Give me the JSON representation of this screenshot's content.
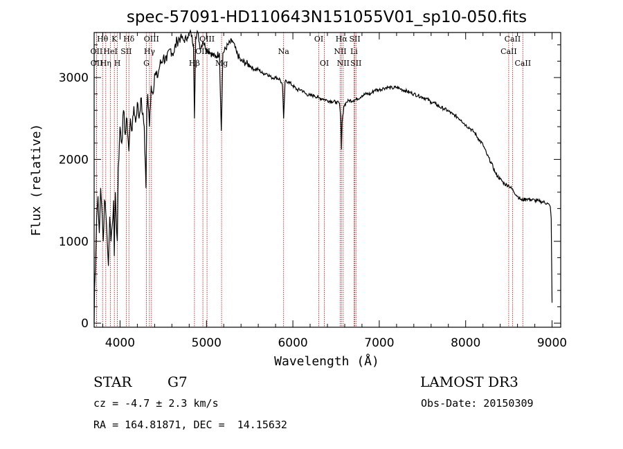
{
  "chart_data": {
    "type": "line",
    "title": "spec-57091-HD110643N151055V01_sp10-050.fits",
    "xlabel": "Wavelength (Å)",
    "ylabel": "Flux (relative)",
    "xlim": [
      3700,
      9100
    ],
    "ylim": [
      -50,
      3550
    ],
    "xticks": [
      4000,
      5000,
      6000,
      7000,
      8000,
      9000
    ],
    "yticks": [
      0,
      1000,
      2000,
      3000
    ],
    "series": [
      {
        "name": "spectrum",
        "anchors": [
          [
            3700,
            0
          ],
          [
            3705,
            420
          ],
          [
            3715,
            680
          ],
          [
            3730,
            1300
          ],
          [
            3745,
            1550
          ],
          [
            3760,
            1100
          ],
          [
            3775,
            1650
          ],
          [
            3790,
            1400
          ],
          [
            3805,
            1000
          ],
          [
            3820,
            1500
          ],
          [
            3835,
            1350
          ],
          [
            3850,
            1050
          ],
          [
            3865,
            700
          ],
          [
            3880,
            1300
          ],
          [
            3895,
            1000
          ],
          [
            3910,
            1200
          ],
          [
            3925,
            1500
          ],
          [
            3933,
            820
          ],
          [
            3945,
            1600
          ],
          [
            3955,
            1300
          ],
          [
            3968,
            1000
          ],
          [
            3980,
            1900
          ],
          [
            4000,
            2400
          ],
          [
            4020,
            2200
          ],
          [
            4040,
            2600
          ],
          [
            4060,
            2300
          ],
          [
            4080,
            2500
          ],
          [
            4102,
            2100
          ],
          [
            4120,
            2500
          ],
          [
            4140,
            2350
          ],
          [
            4160,
            2650
          ],
          [
            4180,
            2450
          ],
          [
            4200,
            2700
          ],
          [
            4220,
            2500
          ],
          [
            4240,
            2750
          ],
          [
            4260,
            2550
          ],
          [
            4280,
            2400
          ],
          [
            4300,
            1650
          ],
          [
            4310,
            2600
          ],
          [
            4320,
            2800
          ],
          [
            4340,
            2400
          ],
          [
            4360,
            2900
          ],
          [
            4380,
            2800
          ],
          [
            4400,
            3050
          ],
          [
            4430,
            3000
          ],
          [
            4460,
            3150
          ],
          [
            4500,
            3250
          ],
          [
            4540,
            3200
          ],
          [
            4580,
            3350
          ],
          [
            4620,
            3300
          ],
          [
            4660,
            3450
          ],
          [
            4700,
            3500
          ],
          [
            4740,
            3450
          ],
          [
            4780,
            3500
          ],
          [
            4820,
            3550
          ],
          [
            4850,
            3400
          ],
          [
            4861,
            2500
          ],
          [
            4875,
            3500
          ],
          [
            4900,
            3550
          ],
          [
            4930,
            3350
          ],
          [
            4960,
            3450
          ],
          [
            5000,
            3350
          ],
          [
            5050,
            3300
          ],
          [
            5100,
            3250
          ],
          [
            5150,
            3300
          ],
          [
            5172,
            2350
          ],
          [
            5190,
            3300
          ],
          [
            5250,
            3400
          ],
          [
            5300,
            3450
          ],
          [
            5350,
            3300
          ],
          [
            5400,
            3200
          ],
          [
            5450,
            3180
          ],
          [
            5500,
            3150
          ],
          [
            5550,
            3100
          ],
          [
            5600,
            3100
          ],
          [
            5650,
            3050
          ],
          [
            5700,
            3050
          ],
          [
            5750,
            3000
          ],
          [
            5800,
            3000
          ],
          [
            5850,
            2980
          ],
          [
            5880,
            2900
          ],
          [
            5893,
            2500
          ],
          [
            5910,
            2950
          ],
          [
            5950,
            2950
          ],
          [
            6000,
            2900
          ],
          [
            6050,
            2850
          ],
          [
            6100,
            2850
          ],
          [
            6150,
            2800
          ],
          [
            6200,
            2780
          ],
          [
            6250,
            2780
          ],
          [
            6300,
            2750
          ],
          [
            6350,
            2740
          ],
          [
            6400,
            2720
          ],
          [
            6450,
            2710
          ],
          [
            6500,
            2700
          ],
          [
            6540,
            2680
          ],
          [
            6555,
            2500
          ],
          [
            6563,
            2120
          ],
          [
            6570,
            2450
          ],
          [
            6590,
            2650
          ],
          [
            6620,
            2700
          ],
          [
            6650,
            2720
          ],
          [
            6700,
            2720
          ],
          [
            6750,
            2740
          ],
          [
            6800,
            2780
          ],
          [
            6850,
            2800
          ],
          [
            6900,
            2800
          ],
          [
            6950,
            2850
          ],
          [
            7000,
            2850
          ],
          [
            7050,
            2870
          ],
          [
            7100,
            2880
          ],
          [
            7150,
            2870
          ],
          [
            7200,
            2880
          ],
          [
            7250,
            2860
          ],
          [
            7300,
            2840
          ],
          [
            7350,
            2820
          ],
          [
            7400,
            2800
          ],
          [
            7450,
            2780
          ],
          [
            7500,
            2760
          ],
          [
            7550,
            2740
          ],
          [
            7600,
            2700
          ],
          [
            7650,
            2680
          ],
          [
            7700,
            2640
          ],
          [
            7750,
            2620
          ],
          [
            7800,
            2590
          ],
          [
            7850,
            2550
          ],
          [
            7900,
            2520
          ],
          [
            7950,
            2480
          ],
          [
            8000,
            2420
          ],
          [
            8050,
            2380
          ],
          [
            8100,
            2330
          ],
          [
            8150,
            2250
          ],
          [
            8200,
            2180
          ],
          [
            8250,
            2050
          ],
          [
            8300,
            1950
          ],
          [
            8350,
            1820
          ],
          [
            8400,
            1760
          ],
          [
            8450,
            1700
          ],
          [
            8500,
            1680
          ],
          [
            8550,
            1620
          ],
          [
            8600,
            1550
          ],
          [
            8650,
            1500
          ],
          [
            8700,
            1520
          ],
          [
            8750,
            1510
          ],
          [
            8800,
            1500
          ],
          [
            8850,
            1490
          ],
          [
            8900,
            1480
          ],
          [
            8950,
            1460
          ],
          [
            8980,
            1420
          ],
          [
            8990,
            1280
          ],
          [
            9000,
            250
          ]
        ]
      }
    ],
    "spectral_lines": [
      {
        "label": "Hθ",
        "wave": 3798,
        "row": 0
      },
      {
        "label": "OII",
        "wave": 3727,
        "row": 1
      },
      {
        "label": "OII",
        "wave": 3729,
        "row": 2
      },
      {
        "label": "Hη",
        "wave": 3835,
        "row": 2
      },
      {
        "label": "HeI",
        "wave": 3889,
        "row": 1
      },
      {
        "label": "K",
        "wave": 3934,
        "row": 0
      },
      {
        "label": "H",
        "wave": 3968,
        "row": 2
      },
      {
        "label": "SII",
        "wave": 4072,
        "row": 1
      },
      {
        "label": "Hδ",
        "wave": 4102,
        "row": 0
      },
      {
        "label": "OIII",
        "wave": 4363,
        "row": 0
      },
      {
        "label": "Hγ",
        "wave": 4340,
        "row": 1
      },
      {
        "label": "G",
        "wave": 4305,
        "row": 2
      },
      {
        "label": "Hβ",
        "wave": 4861,
        "row": 2
      },
      {
        "label": "OIII",
        "wave": 5007,
        "row": 0
      },
      {
        "label": "OIII",
        "wave": 4959,
        "row": 1
      },
      {
        "label": "Mg",
        "wave": 5175,
        "row": 2
      },
      {
        "label": "Na",
        "wave": 5893,
        "row": 1
      },
      {
        "label": "OI",
        "wave": 6300,
        "row": 0
      },
      {
        "label": "OI",
        "wave": 6364,
        "row": 2
      },
      {
        "label": "Hα",
        "wave": 6563,
        "row": 0
      },
      {
        "label": "NII",
        "wave": 6548,
        "row": 1
      },
      {
        "label": "NII",
        "wave": 6583,
        "row": 2
      },
      {
        "label": "SII",
        "wave": 6717,
        "row": 0
      },
      {
        "label": "Li",
        "wave": 6708,
        "row": 1
      },
      {
        "label": "SII",
        "wave": 6731,
        "row": 2
      },
      {
        "label": "CaII",
        "wave": 8542,
        "row": 0
      },
      {
        "label": "CaII",
        "wave": 8498,
        "row": 1
      },
      {
        "label": "CaII",
        "wave": 8662,
        "row": 2
      }
    ]
  },
  "info": {
    "object_class": "STAR",
    "subclass": "G7",
    "redshift_line": "cz = -4.7 ± 2.3 km/s",
    "coords_line": "RA = 164.81871, DEC =  14.15632",
    "survey": "LAMOST DR3",
    "obs_date_line": "Obs-Date: 20150309"
  },
  "colors": {
    "line": "#000000",
    "marker_line": "#b22222",
    "axis": "#000000"
  }
}
